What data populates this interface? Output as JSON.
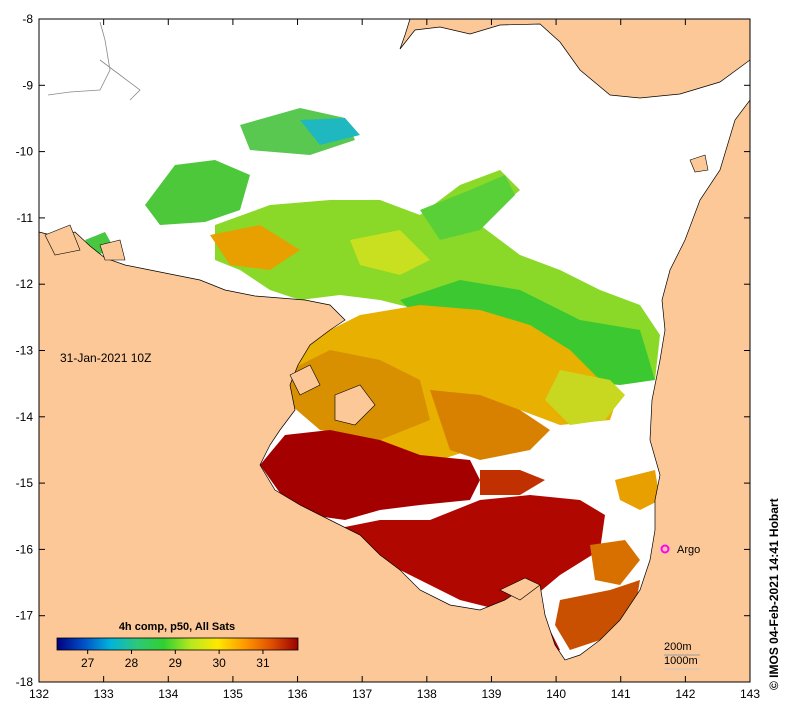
{
  "title": "31-Jan-2021 10Z",
  "credit": "© IMOS 04-Feb-2021 14:41 Hobart",
  "x_ticks": [
    "132",
    "133",
    "134",
    "135",
    "136",
    "137",
    "138",
    "139",
    "140",
    "141",
    "142",
    "143"
  ],
  "y_ticks": [
    "-8",
    "-9",
    "-10",
    "-11",
    "-12",
    "-13",
    "-14",
    "-15",
    "-16",
    "-17",
    "-18"
  ],
  "colorbar": {
    "title": "4h comp, p50, All Sats",
    "ticks": [
      "27",
      "28",
      "29",
      "30",
      "31"
    ],
    "stops": [
      "#00007f",
      "#0050c8",
      "#00b4dc",
      "#2ec878",
      "#30d030",
      "#b8e81e",
      "#ffe800",
      "#ff9a00",
      "#e05000",
      "#9a0000"
    ]
  },
  "contours": {
    "shallow": "200m",
    "deep": "1000m"
  },
  "markers": [
    {
      "label": "Argo",
      "color": "#ff00ff"
    }
  ],
  "colors": {
    "land": "#fcc898",
    "ocean_bg": "#ffffff",
    "hot": "#a80000",
    "warm": "#e07000"
  }
}
